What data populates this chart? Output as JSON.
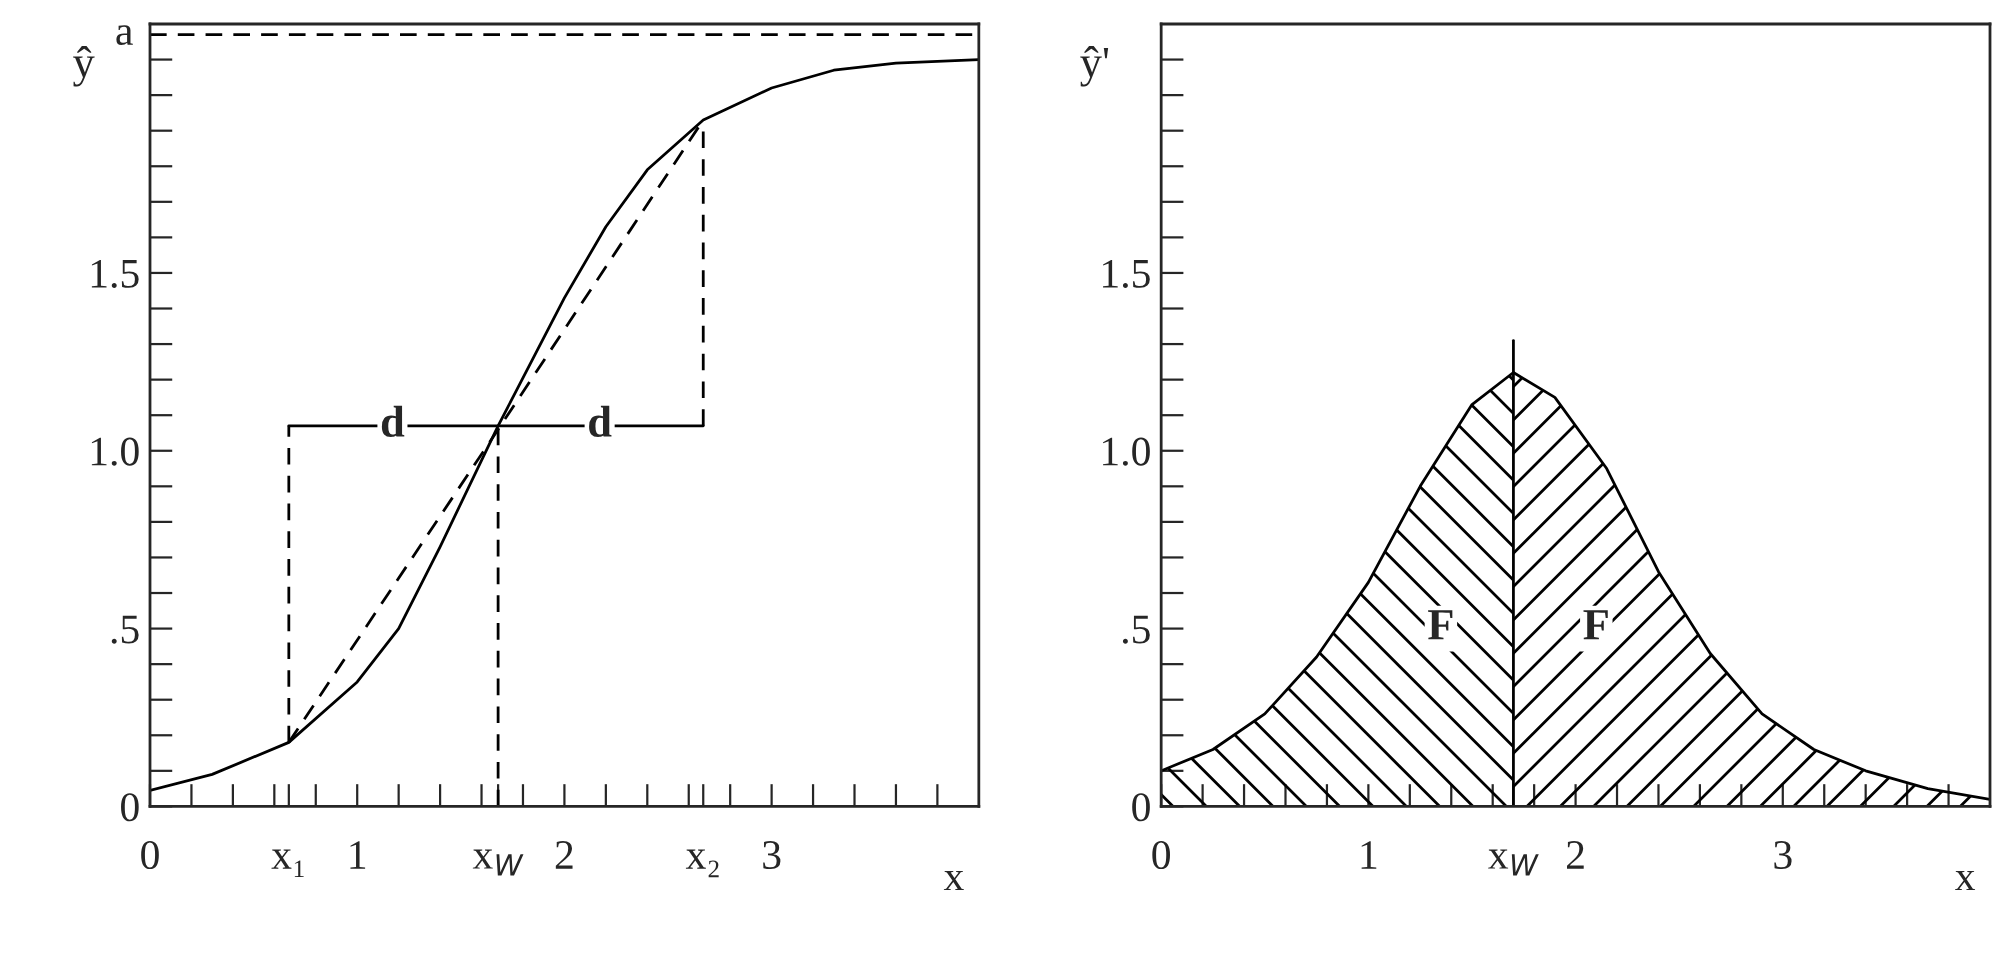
{
  "chart_data": [
    {
      "type": "line",
      "ylabel": "ŷ",
      "xlabel": "x",
      "xlim": [
        0,
        4
      ],
      "ylim": [
        0,
        2.2
      ],
      "grid": false,
      "xticks": [
        0,
        {
          "value": 0.2,
          "label": null
        },
        {
          "value": 0.4,
          "label": null
        },
        {
          "value": 0.6,
          "label": null
        },
        {
          "value": 0.67,
          "label": "x₁"
        },
        {
          "value": 0.8,
          "label": null
        },
        1,
        {
          "value": 1.2,
          "label": null
        },
        {
          "value": 1.4,
          "label": null
        },
        {
          "value": 1.6,
          "label": null
        },
        {
          "value": 1.68,
          "label": "x$_{W}$"
        },
        {
          "value": 1.8,
          "label": null
        },
        2,
        {
          "value": 2.2,
          "label": null
        },
        {
          "value": 2.4,
          "label": null
        },
        {
          "value": 2.6,
          "label": null
        },
        {
          "value": 2.67,
          "label": "x₂"
        },
        {
          "value": 2.8,
          "label": null
        },
        3,
        {
          "value": 3.2,
          "label": null
        },
        {
          "value": 3.4,
          "label": null
        },
        {
          "value": 3.6,
          "label": null
        },
        {
          "value": 3.8,
          "label": null
        }
      ],
      "yticks": [
        0,
        {
          "value": 0.1,
          "label": null
        },
        {
          "value": 0.2,
          "label": null
        },
        {
          "value": 0.3,
          "label": null
        },
        {
          "value": 0.4,
          "label": null
        },
        {
          "value": 0.5,
          "label": ".5"
        },
        {
          "value": 0.6,
          "label": null
        },
        {
          "value": 0.7,
          "label": null
        },
        {
          "value": 0.8,
          "label": null
        },
        {
          "value": 0.9,
          "label": null
        },
        {
          "value": 1.0,
          "label": "1.0"
        },
        {
          "value": 1.1,
          "label": null
        },
        {
          "value": 1.2,
          "label": null
        },
        {
          "value": 1.3,
          "label": null
        },
        {
          "value": 1.4,
          "label": null
        },
        {
          "value": 1.5,
          "label": "1.5"
        },
        {
          "value": 1.6,
          "label": null
        },
        {
          "value": 1.7,
          "label": null
        },
        {
          "value": 1.8,
          "label": null
        },
        {
          "value": 1.9,
          "label": null
        },
        {
          "value": 2.0,
          "label": null
        },
        {
          "value": 2.1,
          "label": null
        }
      ],
      "series": [
        {
          "color": "#000000",
          "line_style": "solid",
          "x": [
            0,
            0.3,
            0.67,
            1.0,
            1.2,
            1.4,
            1.68,
            2.0,
            2.2,
            2.4,
            2.67,
            3.0,
            3.3,
            3.6,
            4.0
          ],
          "values": [
            0.045,
            0.09,
            0.18,
            0.35,
            0.5,
            0.73,
            1.07,
            1.43,
            1.63,
            1.79,
            1.93,
            2.02,
            2.07,
            2.09,
            2.1
          ]
        },
        {
          "color": "#000000",
          "line_style": "dashed",
          "x": [
            0.67,
            1.68,
            2.67
          ],
          "values": [
            0.18,
            1.06,
            1.93
          ]
        },
        {
          "color": "#000000",
          "line_style": "dashed",
          "x": [
            0.67,
            0.67
          ],
          "values": [
            0.18,
            1.07
          ]
        },
        {
          "color": "#000000",
          "line_style": "dashed",
          "x": [
            2.67,
            2.67
          ],
          "values": [
            1.07,
            1.93
          ]
        },
        {
          "color": "#000000",
          "line_style": "dashed",
          "x": [
            1.68,
            1.68
          ],
          "values": [
            0,
            1.07
          ]
        },
        {
          "color": "#000000",
          "line_style": "solid",
          "x": [
            0.67,
            2.67
          ],
          "values": [
            1.07,
            1.07
          ]
        }
      ],
      "ref_lines": [
        {
          "axis": "y",
          "value": 2.17,
          "label": "a",
          "line_style": "dashed"
        }
      ],
      "annotations": [
        {
          "text": "d",
          "x": 1.17,
          "y": 1.07
        },
        {
          "text": "d",
          "x": 2.17,
          "y": 1.07
        }
      ]
    },
    {
      "type": "area",
      "ylabel": "ŷ'",
      "xlabel": "x",
      "xlim": [
        0,
        4
      ],
      "ylim": [
        0,
        2.2
      ],
      "grid": false,
      "xticks": [
        0,
        {
          "value": 0.2,
          "label": null
        },
        {
          "value": 0.4,
          "label": null
        },
        {
          "value": 0.6,
          "label": null
        },
        {
          "value": 0.8,
          "label": null
        },
        1,
        {
          "value": 1.2,
          "label": null
        },
        {
          "value": 1.4,
          "label": null
        },
        {
          "value": 1.6,
          "label": null
        },
        {
          "value": 1.7,
          "label": "x$_{W}$"
        },
        {
          "value": 1.8,
          "label": null
        },
        2,
        {
          "value": 2.2,
          "label": null
        },
        {
          "value": 2.4,
          "label": null
        },
        {
          "value": 2.6,
          "label": null
        },
        {
          "value": 2.8,
          "label": null
        },
        3,
        {
          "value": 3.2,
          "label": null
        },
        {
          "value": 3.4,
          "label": null
        },
        {
          "value": 3.6,
          "label": null
        },
        {
          "value": 3.8,
          "label": null
        }
      ],
      "yticks": [
        0,
        {
          "value": 0.1,
          "label": null
        },
        {
          "value": 0.2,
          "label": null
        },
        {
          "value": 0.3,
          "label": null
        },
        {
          "value": 0.4,
          "label": null
        },
        {
          "value": 0.5,
          "label": ".5"
        },
        {
          "value": 0.6,
          "label": null
        },
        {
          "value": 0.7,
          "label": null
        },
        {
          "value": 0.8,
          "label": null
        },
        {
          "value": 0.9,
          "label": null
        },
        {
          "value": 1.0,
          "label": "1.0"
        },
        {
          "value": 1.1,
          "label": null
        },
        {
          "value": 1.2,
          "label": null
        },
        {
          "value": 1.3,
          "label": null
        },
        {
          "value": 1.4,
          "label": null
        },
        {
          "value": 1.5,
          "label": "1.5"
        },
        {
          "value": 1.6,
          "label": null
        },
        {
          "value": 1.7,
          "label": null
        },
        {
          "value": 1.8,
          "label": null
        },
        {
          "value": 1.9,
          "label": null
        },
        {
          "value": 2.0,
          "label": null
        },
        {
          "value": 2.1,
          "label": null
        }
      ],
      "series": [
        {
          "color": "#000000",
          "x": [
            0,
            0.25,
            0.5,
            0.75,
            1.0,
            1.25,
            1.5,
            1.7
          ],
          "values": [
            0.1,
            0.16,
            0.26,
            0.42,
            0.63,
            0.9,
            1.13,
            1.22
          ]
        },
        {
          "color": "#000000",
          "x": [
            1.7,
            1.9,
            2.15,
            2.4,
            2.65,
            2.9,
            3.15,
            3.4,
            3.7,
            4.0
          ],
          "values": [
            1.22,
            1.15,
            0.95,
            0.66,
            0.43,
            0.26,
            0.16,
            0.1,
            0.05,
            0.02
          ]
        },
        {
          "type": "line",
          "color": "#000000",
          "line_style": "solid",
          "x": [
            1.7,
            1.7
          ],
          "values": [
            0,
            1.31
          ]
        }
      ],
      "annotations": [
        {
          "text": "F",
          "x": 1.35,
          "y": 0.5
        },
        {
          "text": "F",
          "x": 2.1,
          "y": 0.5
        }
      ]
    }
  ]
}
